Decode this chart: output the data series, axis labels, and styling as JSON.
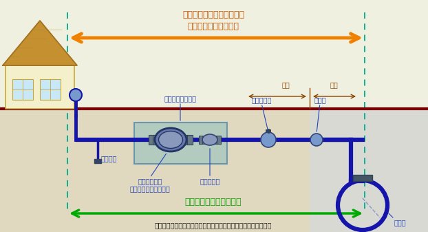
{
  "title_line1": "融資あっせんの対象となる",
  "title_line2": "給水管取替工事の範囲",
  "label_meter_box": "メーターボックス",
  "label_mizunuki": "水抜き栓",
  "label_suidometer": "水道メーター\n（上下水道局が貸与）",
  "label_stop2": "第２止水栓",
  "label_stop1": "第１止水栓",
  "label_bunsuisen": "分水栓",
  "label_haisuikan": "配水管",
  "label_takuchi": "宅地",
  "label_doro": "道路",
  "label_green1": "お客さま所有の給水装置",
  "label_green2": "（配水管の取り出し口からじゃ口まで。ただしメーターを除く）",
  "bg_color": "#f0f0e0",
  "underground_left_color": "#d4c4a0",
  "underground_right_color": "#d0d0d0",
  "pipe_color": "#1515aa",
  "ground_line_color": "#7a0000",
  "meter_box_fill": "#a8c8c0",
  "meter_box_edge": "#5588aa",
  "arrow_orange": "#f08000",
  "arrow_green": "#00aa00",
  "dashed_color": "#00aa88",
  "text_orange": "#cc5500",
  "text_blue": "#2244bb",
  "text_brown": "#884400",
  "text_dark": "#222222",
  "house_wall": "#f5f0cc",
  "house_wall_edge": "#c8a838",
  "house_roof": "#c49030",
  "house_window": "#c8e8f8",
  "flange_color": "#667788",
  "valve_fill": "#7799cc"
}
